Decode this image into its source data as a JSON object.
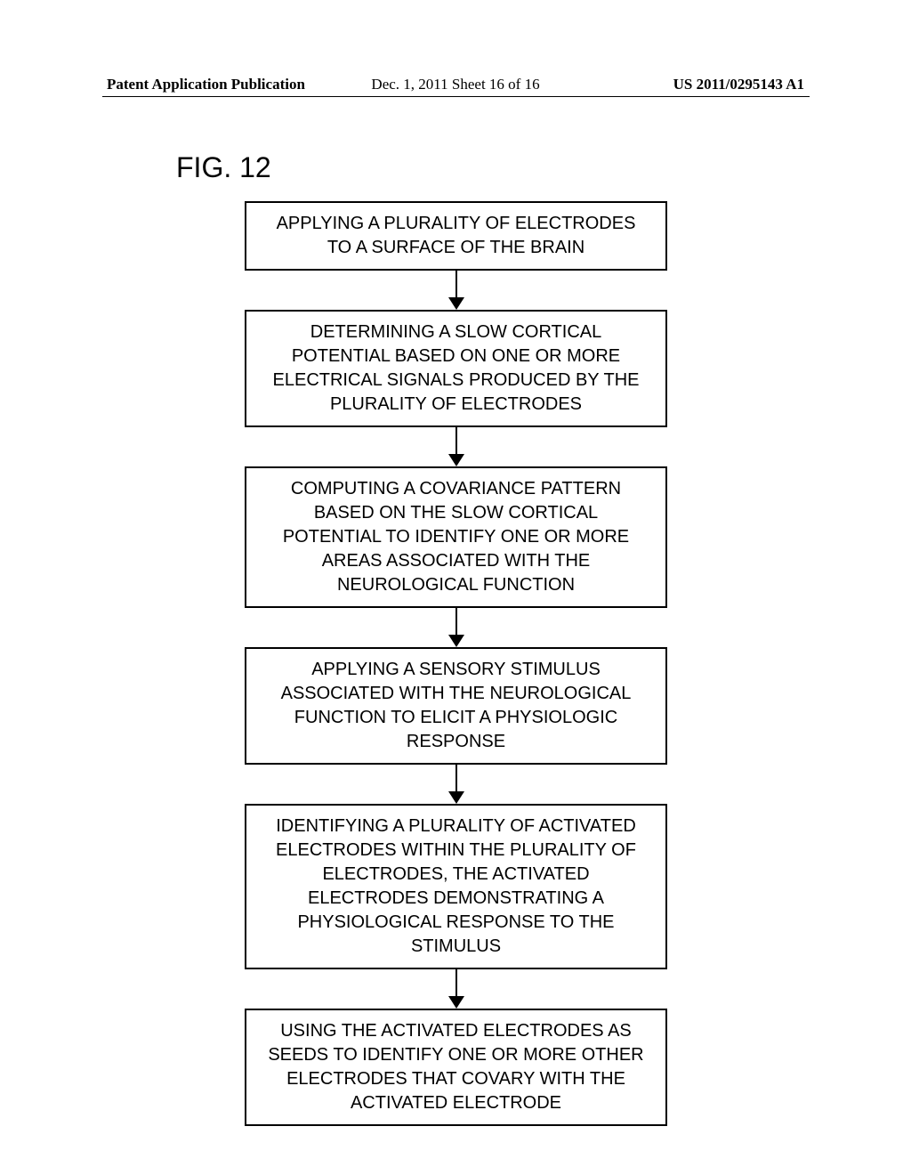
{
  "header": {
    "left": "Patent Application Publication",
    "center": "Dec. 1, 2011  Sheet 16 of 16",
    "right": "US 2011/0295143 A1"
  },
  "figure_title": "FIG. 12",
  "flowchart": {
    "type": "flowchart",
    "box_border_color": "#000000",
    "box_border_width": 2,
    "arrow_color": "#000000",
    "arrow_head_size": 14,
    "background_color": "#ffffff",
    "font_family": "Arial",
    "font_size": 20,
    "boxes": [
      {
        "text": "APPLYING A PLURALITY OF ELECTRODES TO A SURFACE OF THE BRAIN"
      },
      {
        "text": "DETERMINING A SLOW CORTICAL POTENTIAL BASED ON ONE OR MORE ELECTRICAL SIGNALS PRODUCED BY THE PLURALITY OF ELECTRODES"
      },
      {
        "text": "COMPUTING A COVARIANCE PATTERN BASED ON THE SLOW CORTICAL POTENTIAL TO IDENTIFY ONE OR MORE AREAS ASSOCIATED WITH THE NEUROLOGICAL FUNCTION"
      },
      {
        "text": "APPLYING A SENSORY STIMULUS ASSOCIATED WITH THE NEUROLOGICAL FUNCTION TO ELICIT A PHYSIOLOGIC RESPONSE"
      },
      {
        "text": "IDENTIFYING A PLURALITY OF ACTIVATED ELECTRODES WITHIN THE PLURALITY OF ELECTRODES, THE ACTIVATED ELECTRODES DEMONSTRATING A PHYSIOLOGICAL RESPONSE TO THE STIMULUS"
      },
      {
        "text": "USING THE ACTIVATED ELECTRODES AS SEEDS TO IDENTIFY ONE OR MORE OTHER ELECTRODES THAT COVARY WITH THE ACTIVATED ELECTRODE"
      }
    ]
  }
}
